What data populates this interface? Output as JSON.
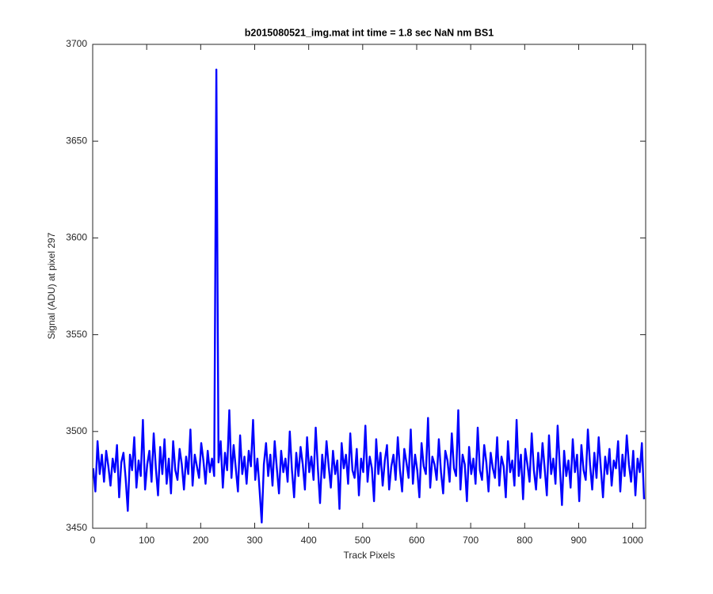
{
  "chart_data": {
    "type": "line",
    "title": "b2015080521_img.mat int time = 1.8 sec  NaN nm BS1",
    "x_label": "Track Pixels",
    "y_label": "Signal (ADU) at pixel 297",
    "xlim": [
      0,
      1024
    ],
    "xticks": [
      0,
      100,
      200,
      300,
      400,
      500,
      600,
      700,
      800,
      900,
      1000
    ],
    "ylim": [
      3450,
      3700
    ],
    "yticks": [
      3450,
      3500,
      3550,
      3600,
      3650,
      3700
    ],
    "grid": false,
    "x": [
      1,
      5,
      9,
      13,
      17,
      21,
      25,
      29,
      33,
      37,
      41,
      45,
      49,
      53,
      57,
      61,
      65,
      69,
      73,
      77,
      81,
      85,
      89,
      93,
      97,
      101,
      105,
      109,
      113,
      117,
      121,
      125,
      129,
      133,
      137,
      141,
      145,
      149,
      153,
      157,
      161,
      165,
      169,
      173,
      177,
      181,
      185,
      189,
      193,
      197,
      201,
      205,
      209,
      213,
      217,
      221,
      225,
      229,
      233,
      237,
      241,
      245,
      249,
      253,
      257,
      261,
      265,
      269,
      273,
      277,
      281,
      285,
      289,
      293,
      297,
      301,
      305,
      309,
      313,
      317,
      321,
      325,
      329,
      333,
      337,
      341,
      345,
      349,
      353,
      357,
      361,
      365,
      369,
      373,
      377,
      381,
      385,
      389,
      393,
      397,
      401,
      405,
      409,
      413,
      417,
      421,
      425,
      429,
      433,
      437,
      441,
      445,
      449,
      453,
      457,
      461,
      465,
      469,
      473,
      477,
      481,
      485,
      489,
      493,
      497,
      501,
      505,
      509,
      513,
      517,
      521,
      525,
      529,
      533,
      537,
      541,
      545,
      549,
      553,
      557,
      561,
      565,
      569,
      573,
      577,
      581,
      585,
      589,
      593,
      597,
      601,
      605,
      609,
      613,
      617,
      621,
      625,
      629,
      633,
      637,
      641,
      645,
      649,
      653,
      657,
      661,
      665,
      669,
      673,
      677,
      681,
      685,
      689,
      693,
      697,
      701,
      705,
      709,
      713,
      717,
      721,
      725,
      729,
      733,
      737,
      741,
      745,
      749,
      753,
      757,
      761,
      765,
      769,
      773,
      777,
      781,
      785,
      789,
      793,
      797,
      801,
      805,
      809,
      813,
      817,
      821,
      825,
      829,
      833,
      837,
      841,
      845,
      849,
      853,
      857,
      861,
      865,
      869,
      873,
      877,
      881,
      885,
      889,
      893,
      897,
      901,
      905,
      909,
      913,
      917,
      921,
      925,
      929,
      933,
      937,
      941,
      945,
      949,
      953,
      957,
      961,
      965,
      969,
      973,
      977,
      981,
      985,
      989,
      993,
      997,
      1001,
      1005,
      1009,
      1013,
      1017,
      1021
    ],
    "series": [
      {
        "color": "#0000ff",
        "values": [
          3481,
          3469,
          3495,
          3478,
          3488,
          3474,
          3490,
          3482,
          3472,
          3486,
          3479,
          3493,
          3466,
          3484,
          3489,
          3476,
          3459,
          3488,
          3480,
          3497,
          3471,
          3485,
          3477,
          3506,
          3470,
          3483,
          3490,
          3474,
          3499,
          3481,
          3467,
          3492,
          3478,
          3496,
          3473,
          3486,
          3468,
          3495,
          3480,
          3475,
          3491,
          3483,
          3470,
          3487,
          3478,
          3501,
          3472,
          3488,
          3482,
          3476,
          3494,
          3485,
          3473,
          3490,
          3479,
          3486,
          3477,
          3687,
          3484,
          3495,
          3471,
          3489,
          3480,
          3511,
          3476,
          3493,
          3481,
          3469,
          3498,
          3478,
          3487,
          3473,
          3490,
          3482,
          3506,
          3475,
          3486,
          3470,
          3453,
          3483,
          3494,
          3477,
          3488,
          3472,
          3495,
          3481,
          3468,
          3490,
          3479,
          3486,
          3474,
          3500,
          3480,
          3466,
          3489,
          3477,
          3492,
          3483,
          3470,
          3497,
          3479,
          3487,
          3475,
          3502,
          3481,
          3463,
          3488,
          3476,
          3495,
          3482,
          3471,
          3490,
          3478,
          3485,
          3460,
          3494,
          3481,
          3488,
          3473,
          3499,
          3480,
          3476,
          3491,
          3467,
          3486,
          3479,
          3503,
          3474,
          3487,
          3481,
          3464,
          3496,
          3478,
          3489,
          3472,
          3485,
          3493,
          3470,
          3482,
          3488,
          3475,
          3497,
          3480,
          3469,
          3491,
          3484,
          3476,
          3501,
          3473,
          3488,
          3480,
          3466,
          3494,
          3482,
          3478,
          3507,
          3471,
          3487,
          3483,
          3475,
          3496,
          3479,
          3468,
          3490,
          3485,
          3474,
          3499,
          3481,
          3477,
          3511,
          3470,
          3488,
          3483,
          3464,
          3492,
          3478,
          3486,
          3473,
          3502,
          3480,
          3475,
          3493,
          3484,
          3469,
          3489,
          3481,
          3476,
          3497,
          3472,
          3487,
          3482,
          3466,
          3495,
          3479,
          3485,
          3472,
          3506,
          3477,
          3488,
          3465,
          3491,
          3483,
          3474,
          3499,
          3480,
          3470,
          3489,
          3476,
          3494,
          3481,
          3467,
          3498,
          3478,
          3486,
          3473,
          3503,
          3482,
          3462,
          3490,
          3477,
          3485,
          3471,
          3496,
          3479,
          3488,
          3464,
          3493,
          3480,
          3475,
          3501,
          3483,
          3470,
          3489,
          3476,
          3497,
          3481,
          3466,
          3487,
          3478,
          3491,
          3472,
          3485,
          3481,
          3495,
          3469,
          3488,
          3477,
          3498,
          3483,
          3474,
          3490,
          3467,
          3486,
          3479,
          3494,
          3465
        ]
      }
    ]
  }
}
